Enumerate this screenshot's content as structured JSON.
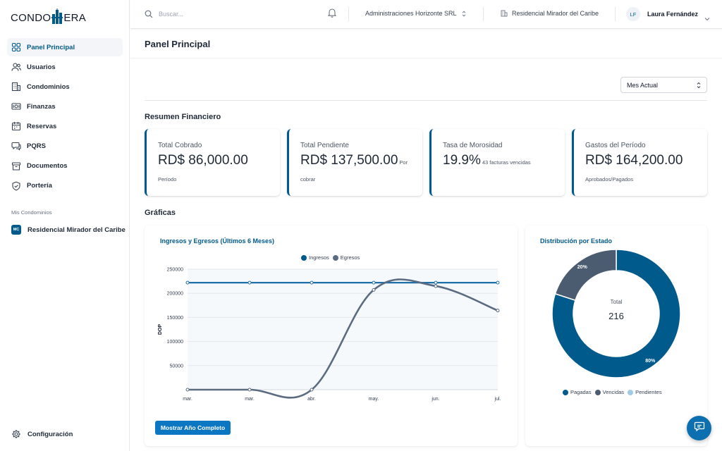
{
  "app": {
    "logo_left": "CONDO",
    "logo_right": "ERA"
  },
  "sidebar": {
    "items": [
      {
        "label": "Panel Principal",
        "icon": "grid-icon",
        "active": true
      },
      {
        "label": "Usuarios",
        "icon": "users-icon"
      },
      {
        "label": "Condominios",
        "icon": "building-icon"
      },
      {
        "label": "Finanzas",
        "icon": "money-icon"
      },
      {
        "label": "Reservas",
        "icon": "calendar-icon"
      },
      {
        "label": "PQRS",
        "icon": "chat-icon"
      },
      {
        "label": "Documentos",
        "icon": "archive-icon"
      },
      {
        "label": "Portería",
        "icon": "shield-icon"
      }
    ],
    "section_label": "Mis Condominios",
    "condo": {
      "badge": "MC",
      "label": "Residencial Mirador del Caribe"
    },
    "config_label": "Configuración"
  },
  "header": {
    "search_placeholder": "Buscar...",
    "organization": "Administraciones Horizonte SRL",
    "condominium": "Residencial Mirador del Caribe",
    "user_initials": "LF",
    "user_name": "Laura Fernández"
  },
  "page": {
    "title": "Panel Principal",
    "period": "Mes Actual",
    "summary_title": "Resumen Financiero",
    "charts_title": "Gráficas"
  },
  "cards": [
    {
      "label": "Total Cobrado",
      "value": "RD$ 86,000.00",
      "inline_sub": "",
      "sub": "Período"
    },
    {
      "label": "Total Pendiente",
      "value": "RD$ 137,500.00",
      "inline_sub": "Por",
      "sub": "cobrar"
    },
    {
      "label": "Tasa de Morosidad",
      "value": "19.9%",
      "inline_sub": "43 facturas vencidas",
      "sub": ""
    },
    {
      "label": "Gastos del Período",
      "value": "RD$ 164,200.00",
      "inline_sub": "",
      "sub": "Aprobados/Pagados"
    }
  ],
  "colors": {
    "primary": "#005a8c",
    "ingresos": "#1f6fa8",
    "egresos": "#5b6b80",
    "pagadas": "#005a8c",
    "vencidas": "#4b5c70",
    "pendientes": "#9fcbe6"
  },
  "line_chart": {
    "title": "Ingresos y Egresos (Últimos 6 Meses)",
    "ylabel": "DOP",
    "button_label": "Mostrar Año Completo",
    "chart_data": {
      "type": "line",
      "categories": [
        "mar.",
        "mar.",
        "abr.",
        "may.",
        "jun.",
        "jul."
      ],
      "series": [
        {
          "name": "Ingresos",
          "values": [
            222000,
            222000,
            222000,
            222000,
            222000,
            222000
          ]
        },
        {
          "name": "Egresos",
          "values": [
            0,
            0,
            0,
            207000,
            215000,
            164200
          ]
        }
      ],
      "yticks": [
        50000,
        100000,
        150000,
        200000,
        250000
      ],
      "ylim": [
        0,
        250000
      ],
      "grid": true,
      "legend": "top"
    }
  },
  "donut_chart": {
    "title": "Distribución por Estado",
    "center_label": "Total",
    "center_value": "216",
    "chart_data": {
      "type": "pie",
      "donut": true,
      "categories": [
        "Pagadas",
        "Vencidas",
        "Pendientes"
      ],
      "values": [
        80,
        20,
        0
      ],
      "labels": [
        "80%",
        "20%",
        ""
      ],
      "legend": "bottom"
    }
  }
}
